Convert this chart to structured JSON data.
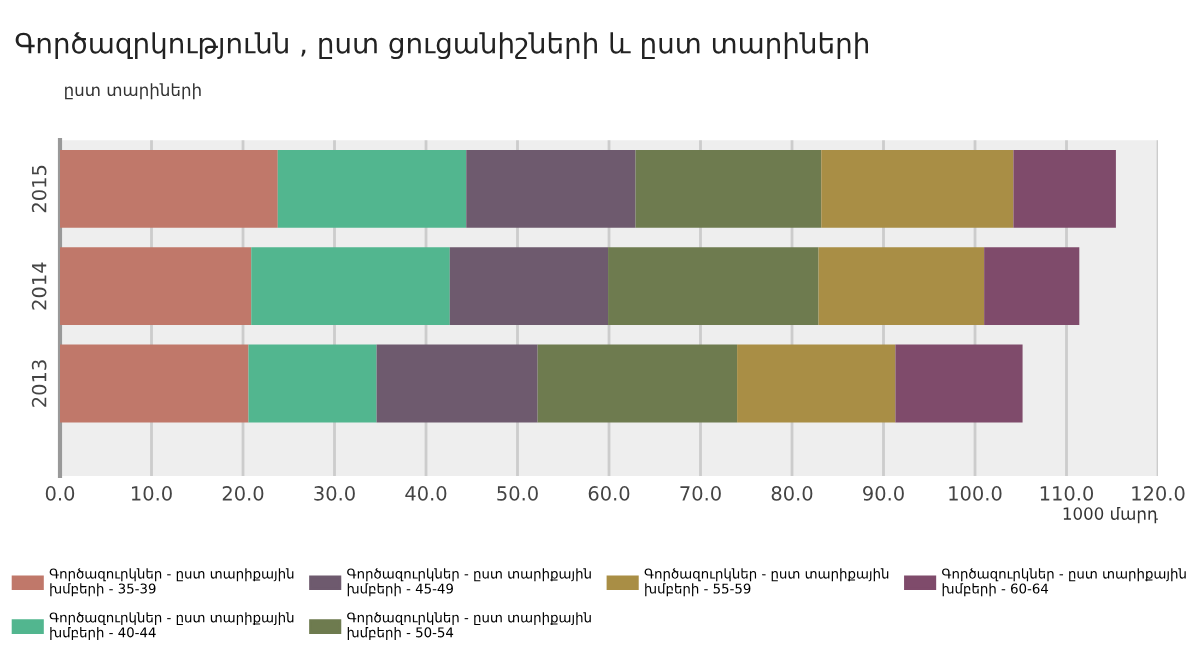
{
  "chart_data": {
    "type": "bar",
    "orientation": "horizontal",
    "stacked": true,
    "title": "Գործազրկությունն , ըստ ցուցանիշների և ըստ տարիների",
    "ylabel": "ըստ տարիների",
    "xlabel": "1000 մարդ",
    "categories": [
      "2015",
      "2014",
      "2013"
    ],
    "series": [
      {
        "name": "Գործազուրկներ - ըստ տարիքային խմբերի - 35-39",
        "color": "#c0786a",
        "values": [
          23.8,
          20.9,
          20.6
        ]
      },
      {
        "name": "Գործազուրկներ - ըստ տարիքային խմբերի - 40-44",
        "color": "#52b68f",
        "values": [
          20.6,
          21.7,
          14.0
        ]
      },
      {
        "name": "Գործազուրկներ - ըստ տարիքային խմբերի - 45-49",
        "color": "#6e5a6e",
        "values": [
          18.5,
          17.3,
          17.6
        ]
      },
      {
        "name": "Գործազուրկներ - ըստ տարիքային խմբերի - 50-54",
        "color": "#6e7b4f",
        "values": [
          20.3,
          23.0,
          21.8
        ]
      },
      {
        "name": "Գործազուրկներ - ըստ տարիքային խմբերի - 55-59",
        "color": "#a98e45",
        "values": [
          21.0,
          18.1,
          17.3
        ]
      },
      {
        "name": "Գործազուրկներ - ըստ տարիքային խմբերի - 60-64",
        "color": "#7f4b6b",
        "values": [
          11.2,
          10.4,
          13.9
        ]
      }
    ],
    "xlim": [
      0,
      120
    ],
    "xticks": [
      {
        "value": 0,
        "label": "0.0"
      },
      {
        "value": 10,
        "label": "10.0"
      },
      {
        "value": 20,
        "label": "20.0"
      },
      {
        "value": 30,
        "label": "30.0"
      },
      {
        "value": 40,
        "label": "40.0"
      },
      {
        "value": 50,
        "label": "50.0"
      },
      {
        "value": 60,
        "label": "60.0"
      },
      {
        "value": 70,
        "label": "70.0"
      },
      {
        "value": 80,
        "label": "80.0"
      },
      {
        "value": 90,
        "label": "90.0"
      },
      {
        "value": 100,
        "label": "100.0"
      },
      {
        "value": 110,
        "label": "110.0"
      },
      {
        "value": 120,
        "label": "120.0"
      }
    ],
    "grid": "x",
    "legend": "bottom"
  }
}
